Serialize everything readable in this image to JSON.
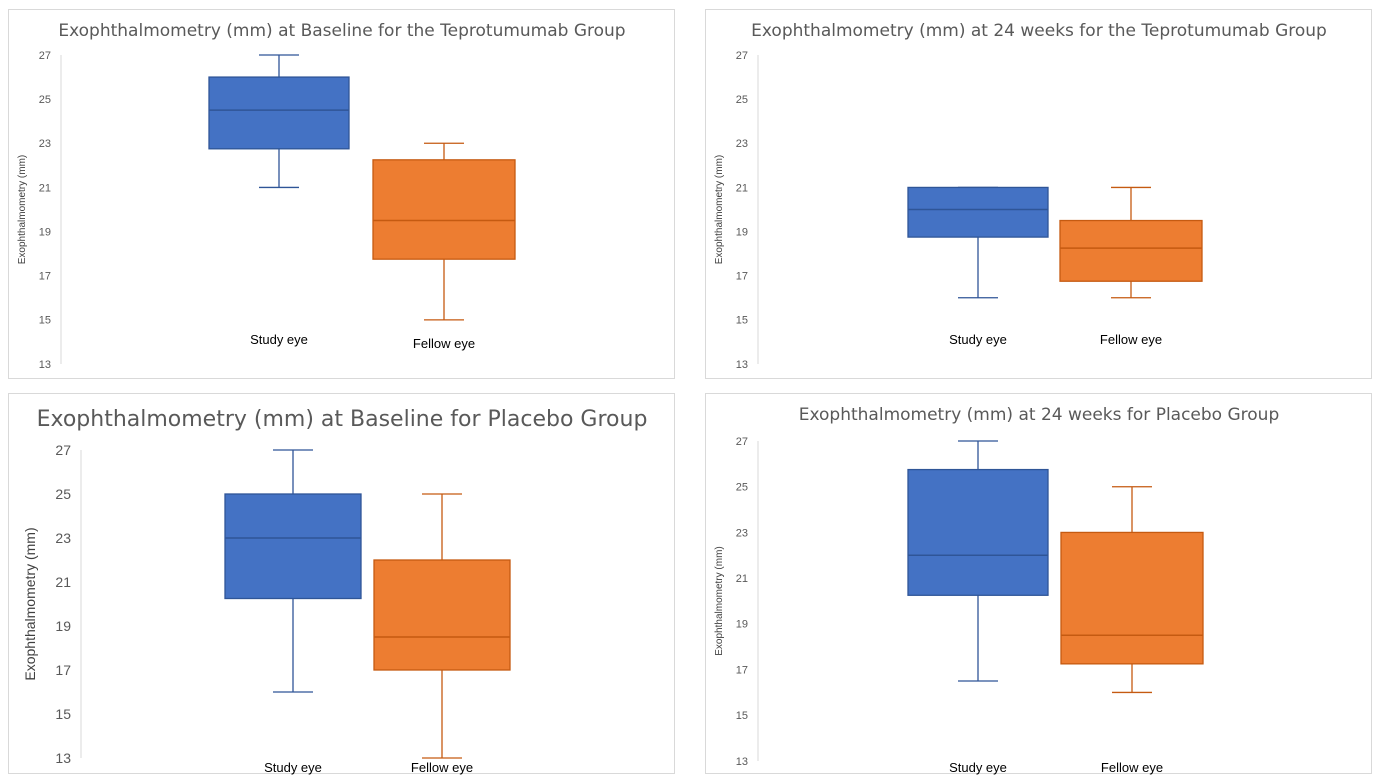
{
  "colors": {
    "study": "#4472C4",
    "study_line": "#2F5597",
    "fellow": "#ED7D31",
    "fellow_line": "#C55A11"
  },
  "chart_data": [
    {
      "type": "boxplot",
      "title": "Exophthalmometry (mm) at Baseline for the Teprotumumab Group",
      "ylabel": "Exophthalmometry (mm)",
      "xlabel": "",
      "ylim": [
        13,
        27
      ],
      "yticks": [
        13,
        15,
        17,
        19,
        21,
        23,
        25,
        27
      ],
      "categories": [
        "Study eye",
        "Fellow eye"
      ],
      "series": [
        {
          "category": "Study eye",
          "min": 21,
          "q1": 22.75,
          "median": 24.5,
          "q3": 26,
          "max": 27
        },
        {
          "category": "Fellow eye",
          "min": 15,
          "q1": 17.75,
          "median": 19.5,
          "q3": 22.25,
          "max": 23
        }
      ]
    },
    {
      "type": "boxplot",
      "title": "Exophthalmometry (mm) at 24 weeks for the Teprotumumab Group",
      "ylabel": "Exophthalmometry (mm)",
      "xlabel": "",
      "ylim": [
        13,
        27
      ],
      "yticks": [
        13,
        15,
        17,
        19,
        21,
        23,
        25,
        27
      ],
      "categories": [
        "Study eye",
        "Fellow eye"
      ],
      "series": [
        {
          "category": "Study eye",
          "min": 16,
          "q1": 18.75,
          "median": 20,
          "q3": 21,
          "max": 21
        },
        {
          "category": "Fellow eye",
          "min": 16,
          "q1": 16.75,
          "median": 18.25,
          "q3": 19.5,
          "max": 21
        }
      ]
    },
    {
      "type": "boxplot",
      "title": "Exophthalmometry (mm) at Baseline for Placebo Group",
      "ylabel": "Exophthalmometry (mm)",
      "xlabel": "",
      "ylim": [
        13,
        27
      ],
      "yticks": [
        13,
        15,
        17,
        19,
        21,
        23,
        25,
        27
      ],
      "categories": [
        "Study eye",
        "Fellow eye"
      ],
      "series": [
        {
          "category": "Study eye",
          "min": 16,
          "q1": 20.25,
          "median": 23,
          "q3": 25,
          "max": 27
        },
        {
          "category": "Fellow eye",
          "min": 13,
          "q1": 17,
          "median": 18.5,
          "q3": 22,
          "max": 25
        }
      ]
    },
    {
      "type": "boxplot",
      "title": "Exophthalmometry (mm) at 24 weeks for Placebo Group",
      "ylabel": "Exophthalmometry (mm)",
      "xlabel": "",
      "ylim": [
        13,
        27
      ],
      "yticks": [
        13,
        15,
        17,
        19,
        21,
        23,
        25,
        27
      ],
      "categories": [
        "Study eye",
        "Fellow eye"
      ],
      "series": [
        {
          "category": "Study eye",
          "min": 16.5,
          "q1": 20.25,
          "median": 22,
          "q3": 25.75,
          "max": 27
        },
        {
          "category": "Fellow eye",
          "min": 16,
          "q1": 17.25,
          "median": 18.5,
          "q3": 23,
          "max": 25
        }
      ]
    }
  ]
}
